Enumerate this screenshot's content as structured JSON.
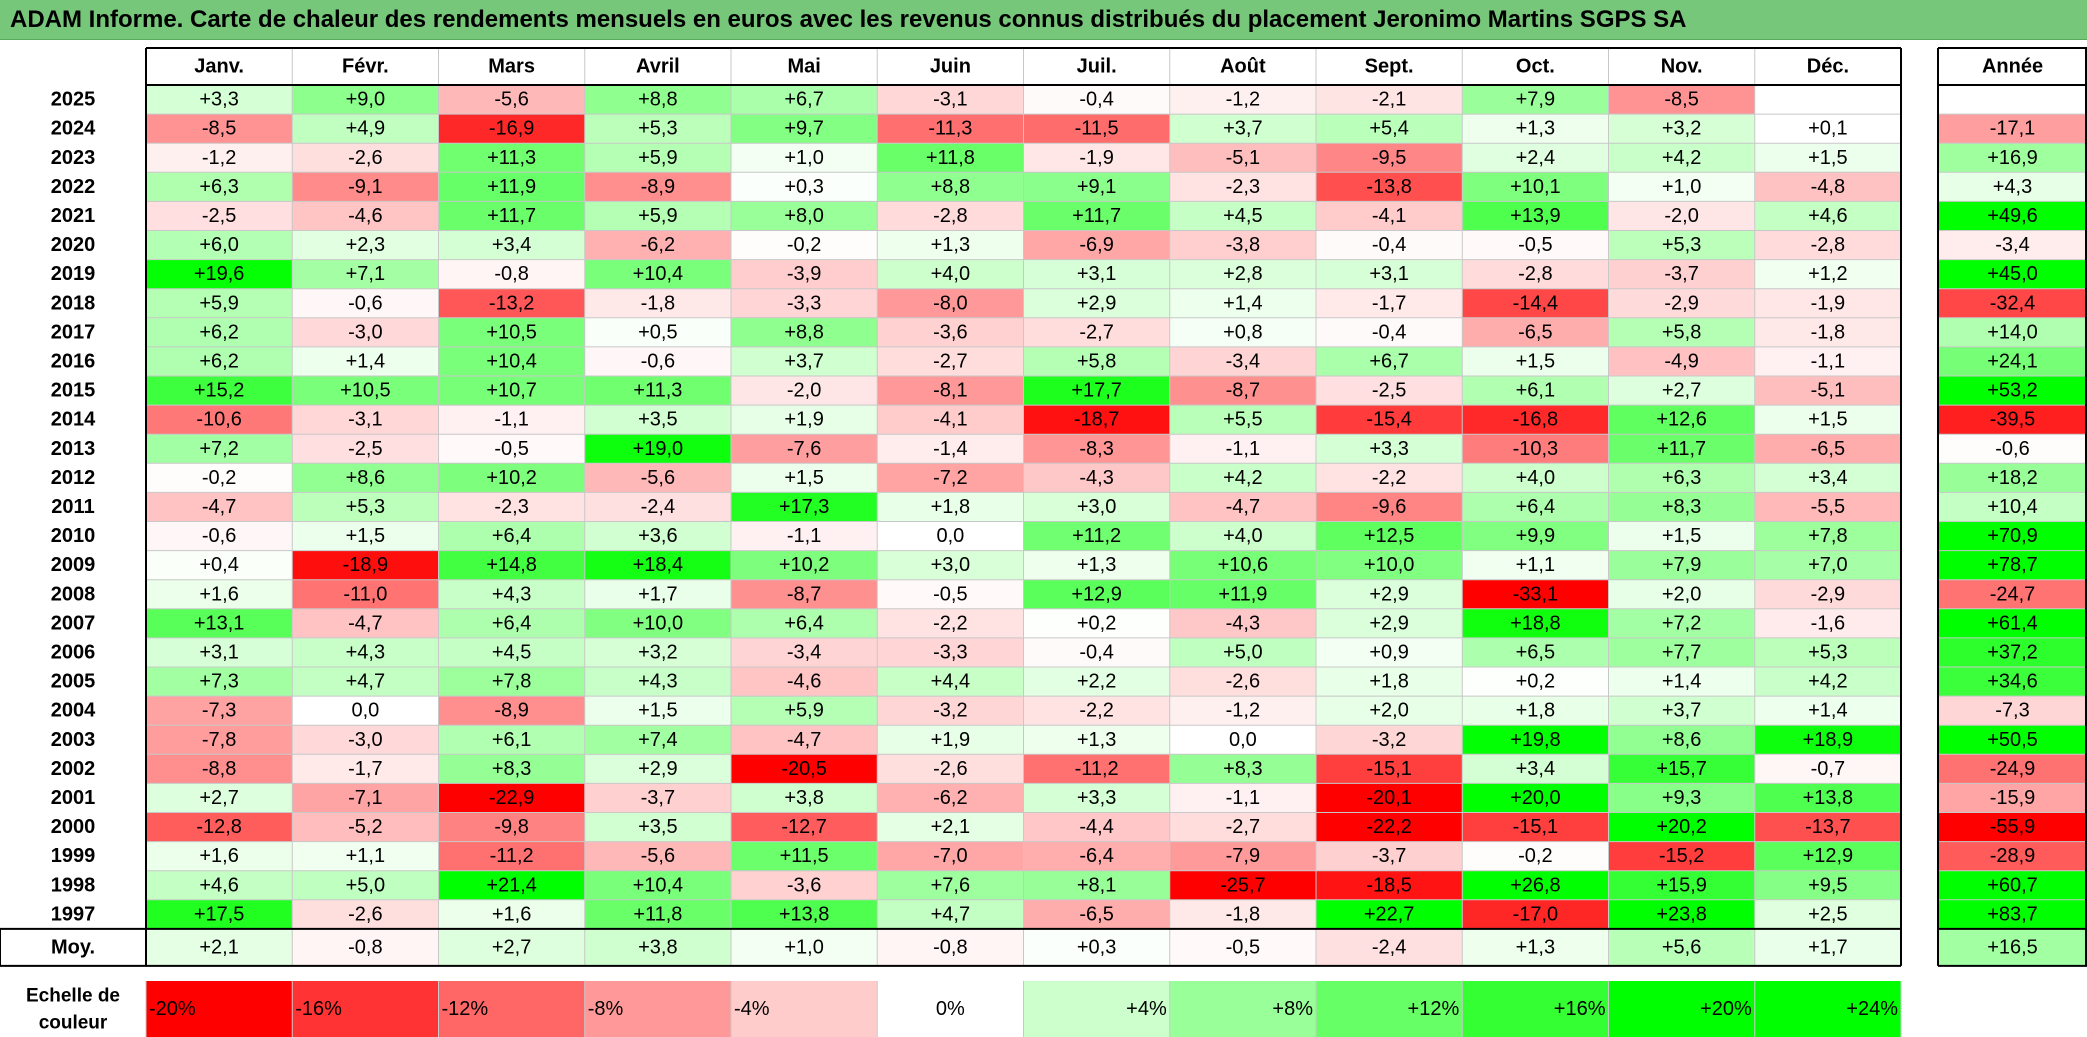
{
  "title": "ADAM Informe. Carte de chaleur des rendements mensuels en euros avec les revenus connus distribués du placement Jeronimo Martins SGPS SA",
  "chart_data": {
    "type": "heatmap",
    "title": "ADAM Informe. Carte de chaleur des rendements mensuels en euros avec les revenus connus distribués du placement Jeronimo Martins SGPS SA",
    "months": [
      "Janv.",
      "Févr.",
      "Mars",
      "Avril",
      "Mai",
      "Juin",
      "Juil.",
      "Août",
      "Sept.",
      "Oct.",
      "Nov.",
      "Déc."
    ],
    "year_header": "Année",
    "rows": [
      {
        "year": "2025",
        "values": [
          "+3,3",
          "+9,0",
          "-5,6",
          "+8,8",
          "+6,7",
          "-3,1",
          "-0,4",
          "-1,2",
          "-2,1",
          "+7,9",
          "-8,5",
          ""
        ],
        "annual": ""
      },
      {
        "year": "2024",
        "values": [
          "-8,5",
          "+4,9",
          "-16,9",
          "+5,3",
          "+9,7",
          "-11,3",
          "-11,5",
          "+3,7",
          "+5,4",
          "+1,3",
          "+3,2",
          "+0,1"
        ],
        "annual": "-17,1"
      },
      {
        "year": "2023",
        "values": [
          "-1,2",
          "-2,6",
          "+11,3",
          "+5,9",
          "+1,0",
          "+11,8",
          "-1,9",
          "-5,1",
          "-9,5",
          "+2,4",
          "+4,2",
          "+1,5"
        ],
        "annual": "+16,9"
      },
      {
        "year": "2022",
        "values": [
          "+6,3",
          "-9,1",
          "+11,9",
          "-8,9",
          "+0,3",
          "+8,8",
          "+9,1",
          "-2,3",
          "-13,8",
          "+10,1",
          "+1,0",
          "-4,8"
        ],
        "annual": "+4,3"
      },
      {
        "year": "2021",
        "values": [
          "-2,5",
          "-4,6",
          "+11,7",
          "+5,9",
          "+8,0",
          "-2,8",
          "+11,7",
          "+4,5",
          "-4,1",
          "+13,9",
          "-2,0",
          "+4,6"
        ],
        "annual": "+49,6"
      },
      {
        "year": "2020",
        "values": [
          "+6,0",
          "+2,3",
          "+3,4",
          "-6,2",
          "-0,2",
          "+1,3",
          "-6,9",
          "-3,8",
          "-0,4",
          "-0,5",
          "+5,3",
          "-2,8"
        ],
        "annual": "-3,4"
      },
      {
        "year": "2019",
        "values": [
          "+19,6",
          "+7,1",
          "-0,8",
          "+10,4",
          "-3,9",
          "+4,0",
          "+3,1",
          "+2,8",
          "+3,1",
          "-2,8",
          "-3,7",
          "+1,2"
        ],
        "annual": "+45,0"
      },
      {
        "year": "2018",
        "values": [
          "+5,9",
          "-0,6",
          "-13,2",
          "-1,8",
          "-3,3",
          "-8,0",
          "+2,9",
          "+1,4",
          "-1,7",
          "-14,4",
          "-2,9",
          "-1,9"
        ],
        "annual": "-32,4"
      },
      {
        "year": "2017",
        "values": [
          "+6,2",
          "-3,0",
          "+10,5",
          "+0,5",
          "+8,8",
          "-3,6",
          "-2,7",
          "+0,8",
          "-0,4",
          "-6,5",
          "+5,8",
          "-1,8"
        ],
        "annual": "+14,0"
      },
      {
        "year": "2016",
        "values": [
          "+6,2",
          "+1,4",
          "+10,4",
          "-0,6",
          "+3,7",
          "-2,7",
          "+5,8",
          "-3,4",
          "+6,7",
          "+1,5",
          "-4,9",
          "-1,1"
        ],
        "annual": "+24,1"
      },
      {
        "year": "2015",
        "values": [
          "+15,2",
          "+10,5",
          "+10,7",
          "+11,3",
          "-2,0",
          "-8,1",
          "+17,7",
          "-8,7",
          "-2,5",
          "+6,1",
          "+2,7",
          "-5,1"
        ],
        "annual": "+53,2"
      },
      {
        "year": "2014",
        "values": [
          "-10,6",
          "-3,1",
          "-1,1",
          "+3,5",
          "+1,9",
          "-4,1",
          "-18,7",
          "+5,5",
          "-15,4",
          "-16,8",
          "+12,6",
          "+1,5"
        ],
        "annual": "-39,5"
      },
      {
        "year": "2013",
        "values": [
          "+7,2",
          "-2,5",
          "-0,5",
          "+19,0",
          "-7,6",
          "-1,4",
          "-8,3",
          "-1,1",
          "+3,3",
          "-10,3",
          "+11,7",
          "-6,5"
        ],
        "annual": "-0,6"
      },
      {
        "year": "2012",
        "values": [
          "-0,2",
          "+8,6",
          "+10,2",
          "-5,6",
          "+1,5",
          "-7,2",
          "-4,3",
          "+4,2",
          "-2,2",
          "+4,0",
          "+6,3",
          "+3,4"
        ],
        "annual": "+18,2"
      },
      {
        "year": "2011",
        "values": [
          "-4,7",
          "+5,3",
          "-2,3",
          "-2,4",
          "+17,3",
          "+1,8",
          "+3,0",
          "-4,7",
          "-9,6",
          "+6,4",
          "+8,3",
          "-5,5"
        ],
        "annual": "+10,4"
      },
      {
        "year": "2010",
        "values": [
          "-0,6",
          "+1,5",
          "+6,4",
          "+3,6",
          "-1,1",
          "0,0",
          "+11,2",
          "+4,0",
          "+12,5",
          "+9,9",
          "+1,5",
          "+7,8"
        ],
        "annual": "+70,9"
      },
      {
        "year": "2009",
        "values": [
          "+0,4",
          "-18,9",
          "+14,8",
          "+18,4",
          "+10,2",
          "+3,0",
          "+1,3",
          "+10,6",
          "+10,0",
          "+1,1",
          "+7,9",
          "+7,0"
        ],
        "annual": "+78,7"
      },
      {
        "year": "2008",
        "values": [
          "+1,6",
          "-11,0",
          "+4,3",
          "+1,7",
          "-8,7",
          "-0,5",
          "+12,9",
          "+11,9",
          "+2,9",
          "-33,1",
          "+2,0",
          "-2,9"
        ],
        "annual": "-24,7"
      },
      {
        "year": "2007",
        "values": [
          "+13,1",
          "-4,7",
          "+6,4",
          "+10,0",
          "+6,4",
          "-2,2",
          "+0,2",
          "-4,3",
          "+2,9",
          "+18,8",
          "+7,2",
          "-1,6"
        ],
        "annual": "+61,4"
      },
      {
        "year": "2006",
        "values": [
          "+3,1",
          "+4,3",
          "+4,5",
          "+3,2",
          "-3,4",
          "-3,3",
          "-0,4",
          "+5,0",
          "+0,9",
          "+6,5",
          "+7,7",
          "+5,3"
        ],
        "annual": "+37,2"
      },
      {
        "year": "2005",
        "values": [
          "+7,3",
          "+4,7",
          "+7,8",
          "+4,3",
          "-4,6",
          "+4,4",
          "+2,2",
          "-2,6",
          "+1,8",
          "+0,2",
          "+1,4",
          "+4,2"
        ],
        "annual": "+34,6"
      },
      {
        "year": "2004",
        "values": [
          "-7,3",
          "0,0",
          "-8,9",
          "+1,5",
          "+5,9",
          "-3,2",
          "-2,2",
          "-1,2",
          "+2,0",
          "+1,8",
          "+3,7",
          "+1,4"
        ],
        "annual": "-7,3"
      },
      {
        "year": "2003",
        "values": [
          "-7,8",
          "-3,0",
          "+6,1",
          "+7,4",
          "-4,7",
          "+1,9",
          "+1,3",
          "0,0",
          "-3,2",
          "+19,8",
          "+8,6",
          "+18,9"
        ],
        "annual": "+50,5"
      },
      {
        "year": "2002",
        "values": [
          "-8,8",
          "-1,7",
          "+8,3",
          "+2,9",
          "-20,5",
          "-2,6",
          "-11,2",
          "+8,3",
          "-15,1",
          "+3,4",
          "+15,7",
          "-0,7"
        ],
        "annual": "-24,9"
      },
      {
        "year": "2001",
        "values": [
          "+2,7",
          "-7,1",
          "-22,9",
          "-3,7",
          "+3,8",
          "-6,2",
          "+3,3",
          "-1,1",
          "-20,1",
          "+20,0",
          "+9,3",
          "+13,8"
        ],
        "annual": "-15,9"
      },
      {
        "year": "2000",
        "values": [
          "-12,8",
          "-5,2",
          "-9,8",
          "+3,5",
          "-12,7",
          "+2,1",
          "-4,4",
          "-2,7",
          "-22,2",
          "-15,1",
          "+20,2",
          "-13,7"
        ],
        "annual": "-55,9"
      },
      {
        "year": "1999",
        "values": [
          "+1,6",
          "+1,1",
          "-11,2",
          "-5,6",
          "+11,5",
          "-7,0",
          "-6,4",
          "-7,9",
          "-3,7",
          "-0,2",
          "-15,2",
          "+12,9"
        ],
        "annual": "-28,9"
      },
      {
        "year": "1998",
        "values": [
          "+4,6",
          "+5,0",
          "+21,4",
          "+10,4",
          "-3,6",
          "+7,6",
          "+8,1",
          "-25,7",
          "-18,5",
          "+26,8",
          "+15,9",
          "+9,5"
        ],
        "annual": "+60,7"
      },
      {
        "year": "1997",
        "values": [
          "+17,5",
          "-2,6",
          "+1,6",
          "+11,8",
          "+13,8",
          "+4,7",
          "-6,5",
          "-1,8",
          "+22,7",
          "-17,0",
          "+23,8",
          "+2,5"
        ],
        "annual": "+83,7"
      }
    ],
    "average": {
      "label": "Moy.",
      "values": [
        "+2,1",
        "-0,8",
        "+2,7",
        "+3,8",
        "+1,0",
        "-0,8",
        "+0,3",
        "-0,5",
        "-2,4",
        "+1,3",
        "+5,6",
        "+1,7"
      ],
      "annual": "+16,5"
    },
    "color_scale": {
      "label": "Echelle de couleur",
      "stops": [
        "-20%",
        "-16%",
        "-12%",
        "-8%",
        "-4%",
        "0%",
        "+4%",
        "+8%",
        "+12%",
        "+16%",
        "+20%",
        "+24%"
      ],
      "colors": [
        "#ff0000",
        "#ff3333",
        "#ff6666",
        "#ff9999",
        "#ffcccc",
        "#ffffff",
        "#ccffcc",
        "#99ff99",
        "#66ff66",
        "#33ff33",
        "#00ff00",
        "#00ff00"
      ]
    },
    "colors": {
      "negative_max": "#ff0000",
      "neutral": "#ffffff",
      "positive_max": "#00ff00",
      "title_bar": "#77c77b"
    }
  }
}
